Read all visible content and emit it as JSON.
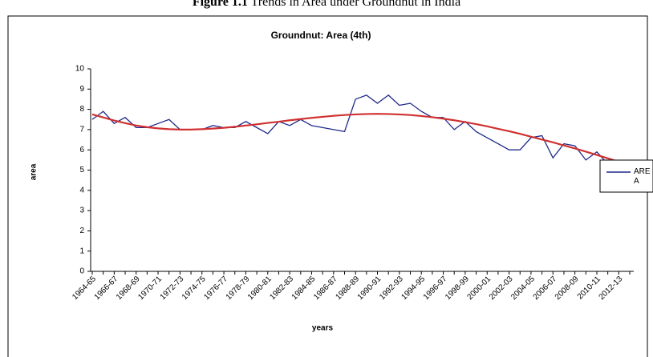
{
  "caption": {
    "label": "Figure 1.1",
    "text": "Trends in Area under Groundnut in India"
  },
  "chart_data": {
    "type": "line",
    "title": "Groundnut: Area (4th)",
    "x_label": "years",
    "y_label": "area",
    "categories": [
      "1964-65",
      null,
      "1966-67",
      null,
      "1968-69",
      null,
      "1970-71",
      null,
      "1972-73",
      null,
      "1974-75",
      null,
      "1976-77",
      null,
      "1978-79",
      null,
      "1980-81",
      null,
      "1982-83",
      null,
      "1984-85",
      null,
      "1986-87",
      null,
      "1988-89",
      null,
      "1990-91",
      null,
      "1992-93",
      null,
      "1994-95",
      null,
      "1996-97",
      null,
      "1998-99",
      null,
      "2000-01",
      null,
      "2002-03",
      null,
      "2004-05",
      null,
      "2006-07",
      null,
      "2008-09",
      null,
      "2010-11",
      null,
      "2012-13",
      null
    ],
    "series": [
      {
        "name": "AREA",
        "color": "#1f2a8a",
        "values": [
          7.5,
          7.9,
          7.3,
          7.6,
          7.1,
          7.1,
          7.3,
          7.5,
          7.0,
          7.0,
          7.0,
          7.2,
          7.1,
          7.1,
          7.4,
          7.1,
          6.8,
          7.4,
          7.2,
          7.5,
          7.2,
          7.1,
          7.0,
          6.9,
          8.5,
          8.7,
          8.3,
          8.7,
          8.2,
          8.3,
          7.9,
          7.6,
          7.6,
          7.0,
          7.4,
          6.9,
          6.6,
          6.3,
          6.0,
          6.0,
          6.6,
          6.7,
          5.6,
          6.3,
          6.2,
          5.5,
          5.9,
          5.3,
          4.7,
          5.3
        ]
      }
    ],
    "trend": {
      "color": "#d03030",
      "values": [
        7.75,
        7.6,
        7.45,
        7.32,
        7.2,
        7.12,
        7.06,
        7.02,
        7.0,
        7.0,
        7.02,
        7.05,
        7.09,
        7.14,
        7.2,
        7.26,
        7.33,
        7.39,
        7.46,
        7.52,
        7.58,
        7.63,
        7.68,
        7.72,
        7.75,
        7.77,
        7.78,
        7.77,
        7.75,
        7.72,
        7.67,
        7.61,
        7.54,
        7.46,
        7.37,
        7.27,
        7.16,
        7.04,
        6.92,
        6.79,
        6.65,
        6.51,
        6.37,
        6.22,
        6.07,
        5.91,
        5.75,
        5.58,
        5.41,
        5.24
      ]
    },
    "ylim": [
      0,
      10
    ],
    "yticks": [
      0,
      1,
      2,
      3,
      4,
      5,
      6,
      7,
      8,
      9,
      10
    ],
    "grid": false,
    "legend": "right"
  }
}
